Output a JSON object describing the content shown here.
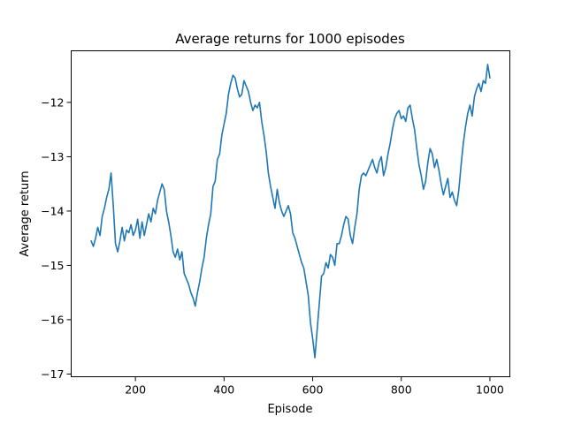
{
  "chart_data": {
    "type": "line",
    "title": "Average returns for 1000 episodes",
    "xlabel": "Episode",
    "ylabel": "Average return",
    "xlim": [
      55,
      1045
    ],
    "ylim": [
      -17.05,
      -11.05
    ],
    "xticks": [
      200,
      400,
      600,
      800,
      1000
    ],
    "yticks": [
      -17,
      -16,
      -15,
      -14,
      -13,
      -12
    ],
    "xtick_labels": [
      "200",
      "400",
      "600",
      "800",
      "1000"
    ],
    "ytick_labels": [
      "−17",
      "−16",
      "−15",
      "−14",
      "−13",
      "−12"
    ],
    "grid": false,
    "series": [
      {
        "color": "#1f77b4",
        "points": [
          [
            100,
            -14.55
          ],
          [
            105,
            -14.65
          ],
          [
            110,
            -14.5
          ],
          [
            115,
            -14.3
          ],
          [
            120,
            -14.45
          ],
          [
            125,
            -14.1
          ],
          [
            130,
            -13.95
          ],
          [
            135,
            -13.75
          ],
          [
            140,
            -13.6
          ],
          [
            145,
            -13.3
          ],
          [
            150,
            -13.9
          ],
          [
            155,
            -14.6
          ],
          [
            160,
            -14.75
          ],
          [
            165,
            -14.55
          ],
          [
            170,
            -14.3
          ],
          [
            175,
            -14.55
          ],
          [
            180,
            -14.35
          ],
          [
            185,
            -14.4
          ],
          [
            190,
            -14.25
          ],
          [
            195,
            -14.45
          ],
          [
            200,
            -14.35
          ],
          [
            205,
            -14.15
          ],
          [
            210,
            -14.5
          ],
          [
            215,
            -14.2
          ],
          [
            220,
            -14.45
          ],
          [
            225,
            -14.25
          ],
          [
            230,
            -14.05
          ],
          [
            235,
            -14.2
          ],
          [
            240,
            -13.95
          ],
          [
            245,
            -14.05
          ],
          [
            250,
            -13.8
          ],
          [
            255,
            -13.65
          ],
          [
            260,
            -13.5
          ],
          [
            265,
            -13.6
          ],
          [
            270,
            -14.0
          ],
          [
            275,
            -14.2
          ],
          [
            280,
            -14.45
          ],
          [
            285,
            -14.75
          ],
          [
            290,
            -14.85
          ],
          [
            295,
            -14.7
          ],
          [
            300,
            -14.9
          ],
          [
            305,
            -14.75
          ],
          [
            310,
            -15.15
          ],
          [
            315,
            -15.25
          ],
          [
            320,
            -15.35
          ],
          [
            325,
            -15.5
          ],
          [
            330,
            -15.6
          ],
          [
            335,
            -15.75
          ],
          [
            340,
            -15.5
          ],
          [
            345,
            -15.3
          ],
          [
            350,
            -15.05
          ],
          [
            355,
            -14.85
          ],
          [
            360,
            -14.5
          ],
          [
            365,
            -14.25
          ],
          [
            370,
            -14.05
          ],
          [
            375,
            -13.55
          ],
          [
            380,
            -13.45
          ],
          [
            385,
            -13.05
          ],
          [
            390,
            -12.95
          ],
          [
            395,
            -12.6
          ],
          [
            400,
            -12.4
          ],
          [
            405,
            -12.2
          ],
          [
            410,
            -11.85
          ],
          [
            415,
            -11.65
          ],
          [
            420,
            -11.5
          ],
          [
            425,
            -11.55
          ],
          [
            430,
            -11.75
          ],
          [
            435,
            -11.9
          ],
          [
            440,
            -11.85
          ],
          [
            445,
            -11.6
          ],
          [
            450,
            -11.7
          ],
          [
            455,
            -11.8
          ],
          [
            460,
            -12.0
          ],
          [
            465,
            -12.15
          ],
          [
            470,
            -12.05
          ],
          [
            475,
            -12.1
          ],
          [
            480,
            -12.0
          ],
          [
            485,
            -12.35
          ],
          [
            490,
            -12.6
          ],
          [
            495,
            -12.9
          ],
          [
            500,
            -13.3
          ],
          [
            505,
            -13.55
          ],
          [
            510,
            -13.75
          ],
          [
            515,
            -13.95
          ],
          [
            520,
            -13.6
          ],
          [
            525,
            -13.85
          ],
          [
            530,
            -14.0
          ],
          [
            535,
            -14.1
          ],
          [
            540,
            -14.0
          ],
          [
            545,
            -13.9
          ],
          [
            550,
            -14.05
          ],
          [
            555,
            -14.4
          ],
          [
            560,
            -14.5
          ],
          [
            565,
            -14.65
          ],
          [
            570,
            -14.8
          ],
          [
            575,
            -14.95
          ],
          [
            580,
            -15.05
          ],
          [
            585,
            -15.3
          ],
          [
            590,
            -15.55
          ],
          [
            595,
            -16.05
          ],
          [
            600,
            -16.35
          ],
          [
            605,
            -16.7
          ],
          [
            610,
            -16.2
          ],
          [
            615,
            -15.7
          ],
          [
            620,
            -15.2
          ],
          [
            625,
            -15.15
          ],
          [
            630,
            -14.95
          ],
          [
            635,
            -15.05
          ],
          [
            640,
            -14.8
          ],
          [
            645,
            -14.85
          ],
          [
            650,
            -15.0
          ],
          [
            655,
            -14.6
          ],
          [
            660,
            -14.6
          ],
          [
            665,
            -14.45
          ],
          [
            670,
            -14.25
          ],
          [
            675,
            -14.1
          ],
          [
            680,
            -14.15
          ],
          [
            685,
            -14.45
          ],
          [
            690,
            -14.6
          ],
          [
            695,
            -14.3
          ],
          [
            700,
            -14.05
          ],
          [
            705,
            -13.6
          ],
          [
            710,
            -13.35
          ],
          [
            715,
            -13.3
          ],
          [
            720,
            -13.35
          ],
          [
            725,
            -13.25
          ],
          [
            730,
            -13.15
          ],
          [
            735,
            -13.05
          ],
          [
            740,
            -13.2
          ],
          [
            745,
            -13.3
          ],
          [
            750,
            -13.1
          ],
          [
            755,
            -13.0
          ],
          [
            760,
            -13.35
          ],
          [
            765,
            -13.2
          ],
          [
            770,
            -12.95
          ],
          [
            775,
            -12.75
          ],
          [
            780,
            -12.5
          ],
          [
            785,
            -12.3
          ],
          [
            790,
            -12.2
          ],
          [
            795,
            -12.15
          ],
          [
            800,
            -12.3
          ],
          [
            805,
            -12.25
          ],
          [
            810,
            -12.35
          ],
          [
            815,
            -12.1
          ],
          [
            820,
            -12.05
          ],
          [
            825,
            -12.3
          ],
          [
            830,
            -12.5
          ],
          [
            835,
            -12.85
          ],
          [
            840,
            -13.15
          ],
          [
            845,
            -13.35
          ],
          [
            850,
            -13.6
          ],
          [
            855,
            -13.45
          ],
          [
            860,
            -13.1
          ],
          [
            865,
            -12.85
          ],
          [
            870,
            -12.95
          ],
          [
            875,
            -13.2
          ],
          [
            880,
            -13.05
          ],
          [
            885,
            -13.25
          ],
          [
            890,
            -13.5
          ],
          [
            895,
            -13.7
          ],
          [
            900,
            -13.55
          ],
          [
            905,
            -13.4
          ],
          [
            910,
            -13.75
          ],
          [
            915,
            -13.65
          ],
          [
            920,
            -13.8
          ],
          [
            925,
            -13.9
          ],
          [
            930,
            -13.6
          ],
          [
            935,
            -13.15
          ],
          [
            940,
            -12.75
          ],
          [
            945,
            -12.45
          ],
          [
            950,
            -12.2
          ],
          [
            955,
            -12.05
          ],
          [
            960,
            -12.25
          ],
          [
            965,
            -11.9
          ],
          [
            970,
            -11.75
          ],
          [
            975,
            -11.65
          ],
          [
            980,
            -11.8
          ],
          [
            985,
            -11.6
          ],
          [
            990,
            -11.65
          ],
          [
            995,
            -11.3
          ],
          [
            1000,
            -11.55
          ]
        ]
      }
    ]
  }
}
